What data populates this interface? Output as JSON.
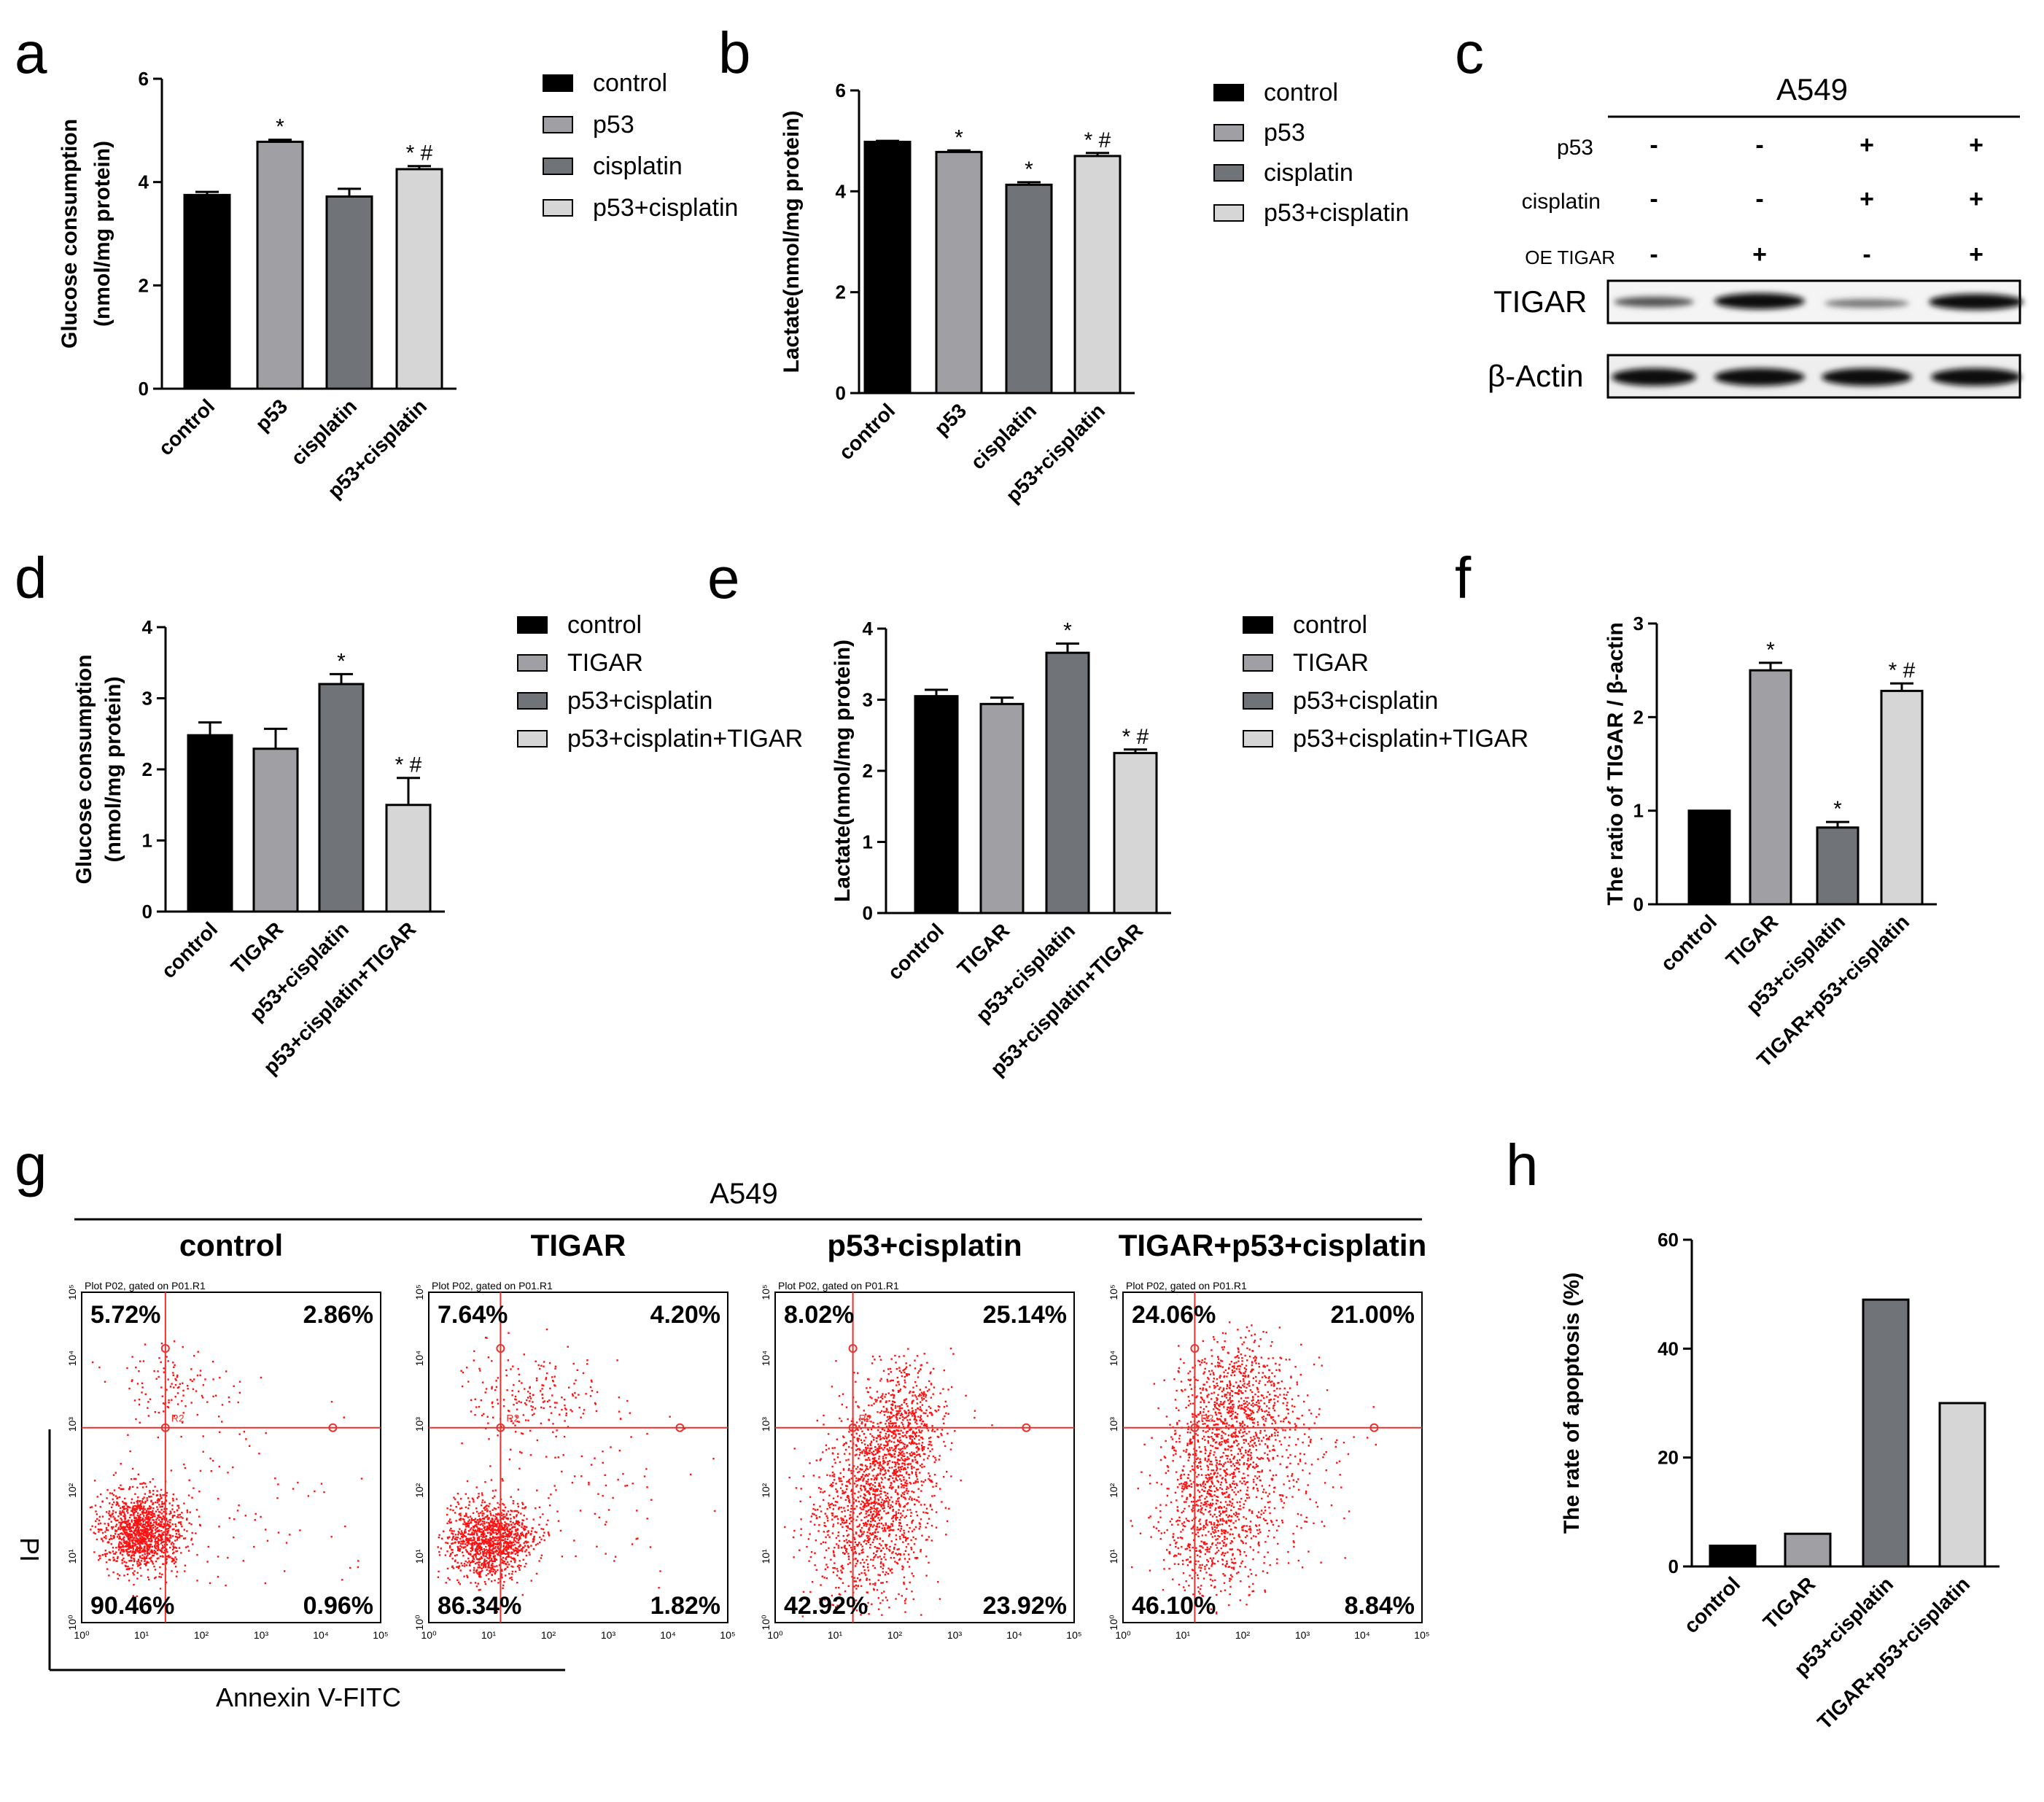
{
  "panel_letters": [
    "a",
    "b",
    "c",
    "d",
    "e",
    "f",
    "g",
    "h"
  ],
  "colors": {
    "s1": "#000000",
    "s2": "#a0a0a4",
    "s3": "#707478",
    "s4": "#d6d6d6",
    "gate": "#e8322f",
    "dots": "#ff1010"
  },
  "significance": {
    "star": "*",
    "star_hash": "* #"
  },
  "chart_data": [
    {
      "id": "a",
      "type": "bar",
      "title": "",
      "ylabel": [
        "Glucose consumption",
        "(nmol/mg protein)"
      ],
      "ylim": [
        0,
        6
      ],
      "yticks": [
        "0",
        "2",
        "4",
        "6"
      ],
      "categories": [
        "control",
        "p53",
        "cisplatin",
        "p53+cisplatin"
      ],
      "values": [
        3.75,
        4.78,
        3.72,
        4.25
      ],
      "errors": [
        0.06,
        0.04,
        0.15,
        0.06
      ],
      "significance": [
        "",
        "*",
        "",
        "* #"
      ],
      "legend": [
        "control",
        "p53",
        "cisplatin",
        "p53+cisplatin"
      ]
    },
    {
      "id": "b",
      "type": "bar",
      "title": "",
      "ylabel": [
        "Lactate(nmol/mg protein)"
      ],
      "ylim": [
        0,
        6
      ],
      "yticks": [
        "0",
        "2",
        "4",
        "6"
      ],
      "categories": [
        "control",
        "p53",
        "cisplatin",
        "p53+cisplatin"
      ],
      "values": [
        4.98,
        4.78,
        4.13,
        4.7
      ],
      "errors": [
        0.02,
        0.03,
        0.05,
        0.06
      ],
      "significance": [
        "",
        "*",
        "*",
        "* #"
      ],
      "legend": [
        "control",
        "p53",
        "cisplatin",
        "p53+cisplatin"
      ]
    },
    {
      "id": "d",
      "type": "bar",
      "title": "",
      "ylabel": [
        "Glucose consumption",
        "(nmol/mg protein)"
      ],
      "ylim": [
        0,
        4
      ],
      "yticks": [
        "0",
        "1",
        "2",
        "3",
        "4"
      ],
      "categories": [
        "control",
        "TIGAR",
        "p53+cisplatin",
        "p53+cisplatin+TIGAR"
      ],
      "values": [
        2.48,
        2.29,
        3.2,
        1.5
      ],
      "errors": [
        0.18,
        0.28,
        0.14,
        0.38
      ],
      "significance": [
        "",
        "",
        "*",
        "* #"
      ],
      "legend": [
        "control",
        "TIGAR",
        "p53+cisplatin",
        "p53+cisplatin+TIGAR"
      ]
    },
    {
      "id": "e",
      "type": "bar",
      "title": "",
      "ylabel": [
        "Lactate(nmol/mg protein)"
      ],
      "ylim": [
        0,
        4
      ],
      "yticks": [
        "0",
        "1",
        "2",
        "3",
        "4"
      ],
      "categories": [
        "control",
        "TIGAR",
        "p53+cisplatin",
        "p53+cisplatin+TIGAR"
      ],
      "values": [
        3.05,
        2.94,
        3.66,
        2.25
      ],
      "errors": [
        0.09,
        0.09,
        0.13,
        0.05
      ],
      "significance": [
        "",
        "",
        "*",
        "* #"
      ],
      "legend": [
        "control",
        "TIGAR",
        "p53+cisplatin",
        "p53+cisplatin+TIGAR"
      ]
    },
    {
      "id": "f",
      "type": "bar",
      "title": "",
      "ylabel": [
        "The ratio of TIGAR / β-actin"
      ],
      "ylim": [
        0,
        3
      ],
      "yticks": [
        "0",
        "1",
        "2",
        "3"
      ],
      "categories": [
        "control",
        "TIGAR",
        "p53+cisplatin",
        "TIGAR+p53+cisplatin"
      ],
      "values": [
        1.0,
        2.5,
        0.82,
        2.28
      ],
      "errors": [
        0.0,
        0.08,
        0.06,
        0.08
      ],
      "significance": [
        "",
        "*",
        "*",
        "* #"
      ],
      "legend": []
    },
    {
      "id": "h",
      "type": "bar",
      "title": "",
      "ylabel": [
        "The rate of apoptosis (%)"
      ],
      "ylim": [
        0,
        60
      ],
      "yticks": [
        "0",
        "20",
        "40",
        "60"
      ],
      "categories": [
        "control",
        "TIGAR",
        "p53+cisplatin",
        "TIGAR+p53+cisplatin"
      ],
      "values": [
        3.8,
        6.0,
        49.0,
        30.0
      ],
      "errors": [
        0,
        0,
        0,
        0
      ],
      "significance": [
        "",
        "",
        "",
        ""
      ],
      "legend": []
    }
  ],
  "western_blot": {
    "cell_line": "A549",
    "row_labels": [
      "p53",
      "cisplatin",
      "OE TIGAR"
    ],
    "rows": [
      [
        "-",
        "-",
        "+",
        "+"
      ],
      [
        "-",
        "-",
        "+",
        "+"
      ],
      [
        "-",
        "+",
        "-",
        "+"
      ]
    ],
    "band_labels": [
      "TIGAR",
      "β-Actin"
    ]
  },
  "flow": {
    "cell_line": "A549",
    "plot_header": "Plot P02, gated on P01.R1",
    "gate_label": "R2",
    "axis_ticks": [
      "10⁰",
      "10¹",
      "10²",
      "10³",
      "10⁴",
      "10⁵"
    ],
    "ylabel": "PI",
    "xlabel": "Annexin V-FITC",
    "panels": [
      {
        "title": "control",
        "q": [
          "5.72%",
          "2.86%",
          "90.46%",
          "0.96%"
        ]
      },
      {
        "title": "TIGAR",
        "q": [
          "7.64%",
          "4.20%",
          "86.34%",
          "1.82%"
        ]
      },
      {
        "title": "p53+cisplatin",
        "q": [
          "8.02%",
          "25.14%",
          "42.92%",
          "23.92%"
        ]
      },
      {
        "title": "TIGAR+p53+cisplatin",
        "q": [
          "24.06%",
          "21.00%",
          "46.10%",
          "8.84%"
        ]
      }
    ]
  }
}
